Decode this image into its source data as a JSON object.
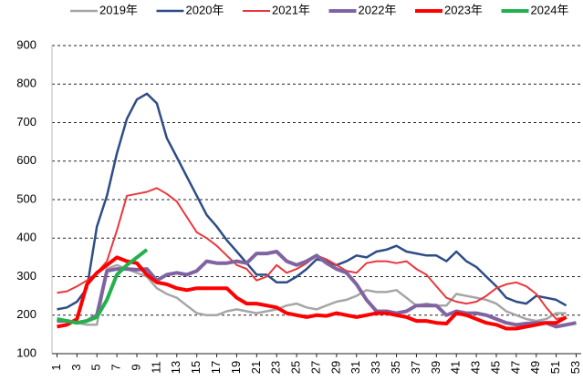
{
  "chart_data": {
    "type": "line",
    "x": [
      1,
      2,
      3,
      4,
      5,
      6,
      7,
      8,
      9,
      10,
      11,
      12,
      13,
      14,
      15,
      16,
      17,
      18,
      19,
      20,
      21,
      22,
      23,
      24,
      25,
      26,
      27,
      28,
      29,
      30,
      31,
      32,
      33,
      34,
      35,
      36,
      37,
      38,
      39,
      40,
      41,
      42,
      43,
      44,
      45,
      46,
      47,
      48,
      49,
      50,
      51,
      52,
      53
    ],
    "xlim": [
      0.5,
      53.5
    ],
    "xticks": [
      1,
      3,
      5,
      7,
      9,
      11,
      13,
      15,
      17,
      19,
      21,
      23,
      25,
      27,
      29,
      31,
      33,
      35,
      37,
      39,
      41,
      43,
      45,
      47,
      49,
      51,
      53
    ],
    "ylim": [
      100,
      900
    ],
    "yticks": [
      100,
      200,
      300,
      400,
      500,
      600,
      700,
      800,
      900
    ],
    "grid": true,
    "legend": "top",
    "series": [
      {
        "name": "2019年",
        "color": "#a6a6a6",
        "width": 2.5,
        "values": [
          190,
          185,
          180,
          175,
          175,
          320,
          330,
          320,
          310,
          300,
          270,
          255,
          245,
          225,
          205,
          200,
          200,
          210,
          215,
          210,
          205,
          210,
          215,
          225,
          230,
          220,
          215,
          225,
          235,
          240,
          250,
          265,
          260,
          260,
          265,
          245,
          225,
          230,
          225,
          225,
          255,
          250,
          245,
          240,
          230,
          210,
          200,
          190,
          185,
          190,
          205,
          205,
          null
        ]
      },
      {
        "name": "2020年",
        "color": "#2e4d86",
        "width": 2.5,
        "values": [
          215,
          220,
          235,
          270,
          430,
          510,
          620,
          710,
          760,
          775,
          750,
          660,
          610,
          560,
          510,
          460,
          430,
          395,
          365,
          335,
          305,
          305,
          285,
          285,
          300,
          320,
          345,
          340,
          330,
          340,
          355,
          350,
          365,
          370,
          380,
          365,
          360,
          355,
          355,
          340,
          365,
          340,
          325,
          300,
          275,
          245,
          235,
          230,
          250,
          245,
          240,
          225,
          null
        ]
      },
      {
        "name": "2021年",
        "color": "#e8383d",
        "width": 2,
        "values": [
          258,
          262,
          275,
          290,
          310,
          340,
          420,
          510,
          515,
          520,
          530,
          515,
          495,
          455,
          415,
          400,
          380,
          355,
          330,
          320,
          290,
          300,
          330,
          310,
          320,
          335,
          355,
          345,
          330,
          315,
          310,
          335,
          340,
          340,
          335,
          340,
          320,
          305,
          275,
          245,
          235,
          230,
          235,
          250,
          270,
          280,
          285,
          275,
          255,
          220,
          190,
          195,
          null
        ]
      },
      {
        "name": "2022年",
        "color": "#8064a2",
        "width": 4,
        "values": [
          185,
          185,
          180,
          185,
          200,
          315,
          320,
          320,
          318,
          320,
          290,
          305,
          310,
          305,
          315,
          340,
          335,
          335,
          340,
          335,
          360,
          360,
          365,
          340,
          330,
          340,
          355,
          335,
          320,
          310,
          280,
          240,
          210,
          210,
          205,
          210,
          225,
          225,
          225,
          200,
          210,
          205,
          205,
          200,
          190,
          180,
          175,
          178,
          180,
          180,
          170,
          175,
          180
        ]
      },
      {
        "name": "2023年",
        "color": "#ff0000",
        "width": 4,
        "values": [
          170,
          175,
          190,
          280,
          310,
          330,
          350,
          340,
          335,
          305,
          285,
          280,
          270,
          265,
          270,
          270,
          270,
          270,
          245,
          230,
          230,
          225,
          220,
          205,
          200,
          195,
          200,
          198,
          205,
          200,
          195,
          200,
          205,
          205,
          200,
          195,
          185,
          185,
          180,
          178,
          205,
          200,
          190,
          180,
          175,
          165,
          165,
          170,
          175,
          180,
          180,
          195,
          null
        ]
      },
      {
        "name": "2024年",
        "color": "#22b14c",
        "width": 4,
        "values": [
          190,
          185,
          180,
          185,
          195,
          240,
          305,
          330,
          350,
          370,
          null,
          null,
          null,
          null,
          null,
          null,
          null,
          null,
          null,
          null,
          null,
          null,
          null,
          null,
          null,
          null,
          null,
          null,
          null,
          null,
          null,
          null,
          null,
          null,
          null,
          null,
          null,
          null,
          null,
          null,
          null,
          null,
          null,
          null,
          null,
          null,
          null,
          null,
          null,
          null,
          null,
          null,
          null
        ]
      }
    ]
  }
}
